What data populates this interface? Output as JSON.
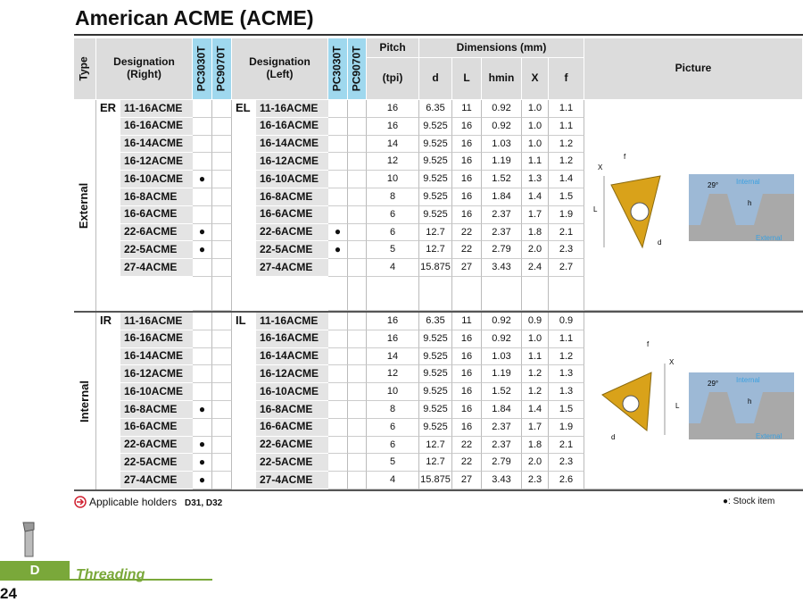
{
  "header": {
    "title": "American ACME (ACME)"
  },
  "table": {
    "headers": {
      "type": "Type",
      "right": "Designation (Right)",
      "left": "Designation (Left)",
      "pc1": "PC3030T",
      "pc2": "PC9070T",
      "pitch": "Pitch",
      "tpi": "(tpi)",
      "dimensions": "Dimensions (mm)",
      "d": "d",
      "L": "L",
      "hmin": "hmin",
      "X": "X",
      "f": "f",
      "picture": "Picture"
    },
    "sections": [
      {
        "type": "External",
        "right_label": "ER",
        "left_label": "EL",
        "rows": [
          {
            "right": "11-16ACME",
            "left": "11-16ACME",
            "vals": [
              "16",
              "6.35",
              "11",
              "0.92",
              "1.0",
              "1.1"
            ]
          },
          {
            "right": "16-16ACME",
            "left": "16-16ACME",
            "vals": [
              "16",
              "9.525",
              "16",
              "0.92",
              "1.0",
              "1.1"
            ]
          },
          {
            "right": "16-14ACME",
            "left": "16-14ACME",
            "vals": [
              "14",
              "9.525",
              "16",
              "1.03",
              "1.0",
              "1.2"
            ]
          },
          {
            "right": "16-12ACME",
            "left": "16-12ACME",
            "vals": [
              "12",
              "9.525",
              "16",
              "1.19",
              "1.1",
              "1.2"
            ]
          },
          {
            "right": "16-10ACME",
            "left": "16-10ACME",
            "right_stock": "●",
            "vals": [
              "10",
              "9.525",
              "16",
              "1.52",
              "1.3",
              "1.4"
            ]
          },
          {
            "right": "16-8ACME",
            "left": "16-8ACME",
            "vals": [
              "8",
              "9.525",
              "16",
              "1.84",
              "1.4",
              "1.5"
            ]
          },
          {
            "right": "16-6ACME",
            "left": "16-6ACME",
            "vals": [
              "6",
              "9.525",
              "16",
              "2.37",
              "1.7",
              "1.9"
            ]
          },
          {
            "right": "22-6ACME",
            "left": "22-6ACME",
            "right_stock": "●",
            "left_stock": "●",
            "vals": [
              "6",
              "12.7",
              "22",
              "2.37",
              "1.8",
              "2.1"
            ]
          },
          {
            "right": "22-5ACME",
            "left": "22-5ACME",
            "right_stock": "●",
            "left_stock": "●",
            "vals": [
              "5",
              "12.7",
              "22",
              "2.79",
              "2.0",
              "2.3"
            ]
          },
          {
            "right": "27-4ACME",
            "left": "27-4ACME",
            "vals": [
              "4",
              "15.875",
              "27",
              "3.43",
              "2.4",
              "2.7"
            ]
          }
        ]
      },
      {
        "type": "Internal",
        "right_label": "IR",
        "left_label": "IL",
        "rows": [
          {
            "right": "11-16ACME",
            "left": "11-16ACME",
            "vals": [
              "16",
              "6.35",
              "11",
              "0.92",
              "0.9",
              "0.9"
            ]
          },
          {
            "right": "16-16ACME",
            "left": "16-16ACME",
            "vals": [
              "16",
              "9.525",
              "16",
              "0.92",
              "1.0",
              "1.1"
            ]
          },
          {
            "right": "16-14ACME",
            "left": "16-14ACME",
            "vals": [
              "14",
              "9.525",
              "16",
              "1.03",
              "1.1",
              "1.2"
            ]
          },
          {
            "right": "16-12ACME",
            "left": "16-12ACME",
            "vals": [
              "12",
              "9.525",
              "16",
              "1.19",
              "1.2",
              "1.3"
            ]
          },
          {
            "right": "16-10ACME",
            "left": "16-10ACME",
            "vals": [
              "10",
              "9.525",
              "16",
              "1.52",
              "1.2",
              "1.3"
            ]
          },
          {
            "right": "16-8ACME",
            "left": "16-8ACME",
            "right_stock": "●",
            "vals": [
              "8",
              "9.525",
              "16",
              "1.84",
              "1.4",
              "1.5"
            ]
          },
          {
            "right": "16-6ACME",
            "left": "16-6ACME",
            "vals": [
              "6",
              "9.525",
              "16",
              "2.37",
              "1.7",
              "1.9"
            ]
          },
          {
            "right": "22-6ACME",
            "left": "22-6ACME",
            "right_stock": "●",
            "vals": [
              "6",
              "12.7",
              "22",
              "2.37",
              "1.8",
              "2.1"
            ]
          },
          {
            "right": "22-5ACME",
            "left": "22-5ACME",
            "right_stock": "●",
            "vals": [
              "5",
              "12.7",
              "22",
              "2.79",
              "2.0",
              "2.3"
            ]
          },
          {
            "right": "27-4ACME",
            "left": "27-4ACME",
            "right_stock": "●",
            "vals": [
              "4",
              "15.875",
              "27",
              "3.43",
              "2.3",
              "2.6"
            ]
          }
        ]
      }
    ]
  },
  "pictures": [
    {
      "x": "X",
      "f": "f",
      "L": "L",
      "d": "d",
      "angle": "29°",
      "internal": "Internal",
      "h": "h",
      "external": "External"
    },
    {
      "x": "X",
      "f": "f",
      "L": "L",
      "d": "d",
      "angle": "29°",
      "internal": "Internal",
      "h": "h",
      "external": "External"
    }
  ],
  "footer": {
    "holders": "Applicable holders",
    "holder_codes": "D31, D32",
    "stock_note": "●: Stock item"
  },
  "side": {
    "tab": "D",
    "chapter": "Threading",
    "page": "24"
  }
}
